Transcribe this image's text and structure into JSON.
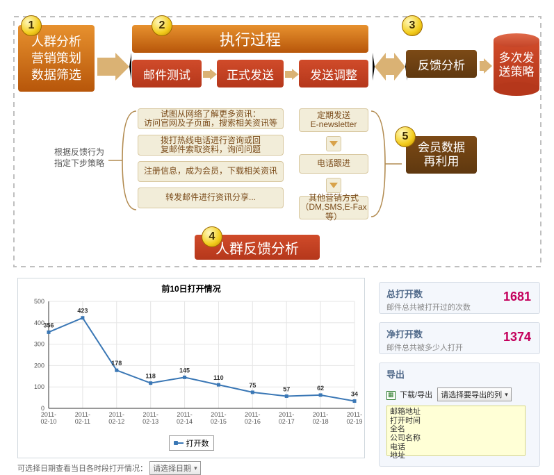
{
  "diagram": {
    "badges": [
      "1",
      "2",
      "3",
      "4",
      "5"
    ],
    "box1_lines": "人群分析\n营销策划\n数据筛选",
    "box2_title": "执行过程",
    "sub_boxes": [
      "邮件测试",
      "正式发送",
      "发送调整"
    ],
    "box3": "反馈分析",
    "cylinder": "多次发\n送策略",
    "box5": "会员数据\n再利用",
    "step4_title": "人群反馈分析",
    "left_note": "根据反馈行为\n指定下步策略",
    "tan_left": [
      "试图从网络了解更多资讯：\n访问官网及子页面，搜索相关资讯等",
      "拨打热线电话进行咨询或回\n复邮件索取资料，询问问题",
      "注册信息，成为会员，下载相关资讯",
      "转发邮件进行资讯分享..."
    ],
    "tan_right": [
      "定期发送\nE-newsletter",
      "电话跟进",
      "其他营销方式\n（DM,SMS,E-Fax等）"
    ],
    "colors": {
      "big_orange_a": "#e7912e",
      "big_orange_b": "#b7560a",
      "red_a": "#d04b2a",
      "red_b": "#b5371b",
      "brown_a": "#7c4a16",
      "brown_b": "#5f380f",
      "tan_bg": "#f2edd9",
      "tan_border": "#d8c8a0",
      "tan_text": "#7a4b1a",
      "arrow": "#dab274",
      "badge_a": "#fff9c0",
      "badge_b": "#f3cd1d",
      "badge_c": "#c08900"
    }
  },
  "chart": {
    "title": "前10日打开情况",
    "title_fontsize": 12,
    "type": "line",
    "xlabels": [
      "2011-02-10",
      "2011-02-11",
      "2011-02-12",
      "2011-02-13",
      "2011-02-14",
      "2011-02-15",
      "2011-02-16",
      "2011-02-17",
      "2011-02-18",
      "2011-02-19"
    ],
    "values": [
      356,
      423,
      178,
      118,
      145,
      110,
      75,
      57,
      62,
      34
    ],
    "show_value_labels": true,
    "ylim": [
      0,
      500
    ],
    "ytick_step": 100,
    "line_color": "#3a77b5",
    "marker_color": "#3a77b5",
    "marker_style": "square",
    "marker_size": 5,
    "line_width": 2,
    "grid_color": "#e5e5e5",
    "axis_color": "#333333",
    "background": "#ffffff",
    "label_fontsize": 9,
    "legend_label": "打开数",
    "legend_position": "bottom-center"
  },
  "panel": {
    "kpi1_title": "总打开数",
    "kpi1_sub": "邮件总共被打开过的次数",
    "kpi1_val": "1681",
    "kpi2_title": "净打开数",
    "kpi2_sub": "邮件总共被多少人打开",
    "kpi2_val": "1374",
    "export_title": "导出",
    "export_label": "下载/导出",
    "export_dropdown": "请选择要导出的列",
    "export_list": [
      "邮箱地址",
      "打开时间",
      "全名",
      "公司名称",
      "电话",
      "地址"
    ],
    "footer_label": "可选择日期查看当日各时段打开情况：",
    "footer_dropdown": "请选择日期",
    "kpi_title_color": "#516a8a",
    "kpi_val_color": "#c4005c",
    "panel_bg": "#f4f7fc",
    "panel_border": "#d6dde6",
    "list_bg": "#ffffd6",
    "list_border": "#d8d87a"
  }
}
